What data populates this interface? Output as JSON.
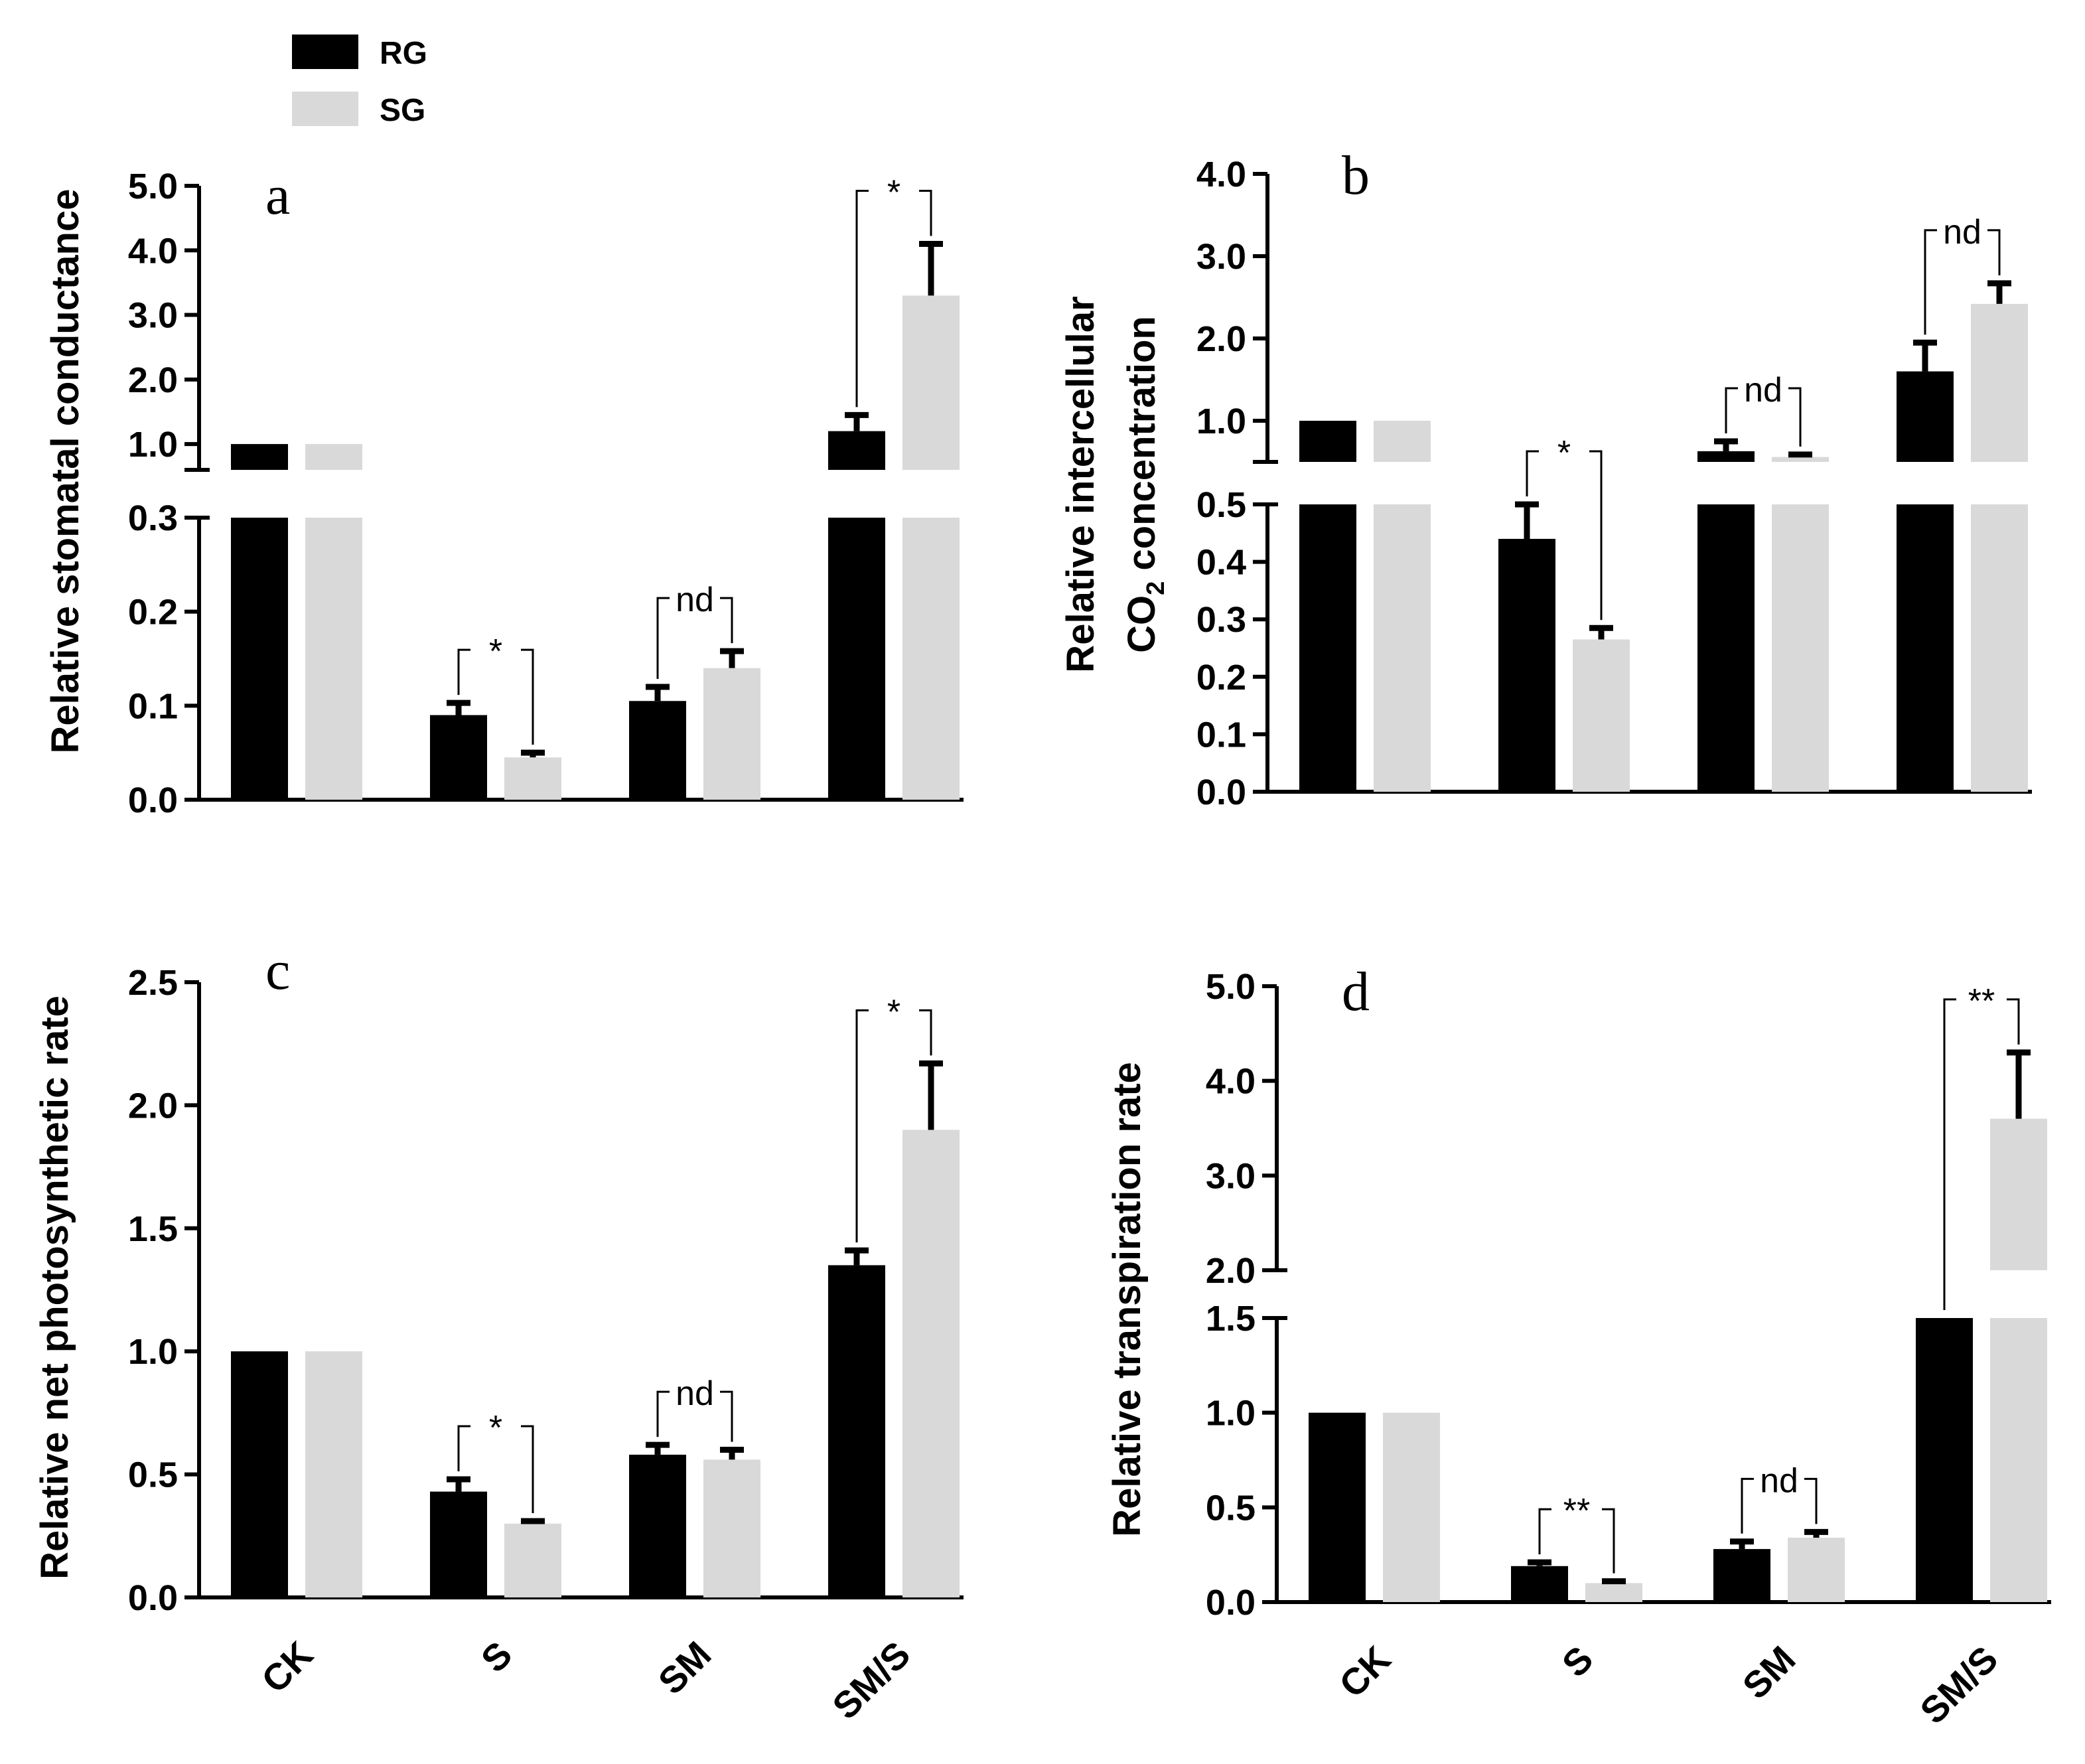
{
  "legend": {
    "items": [
      {
        "name": "RG",
        "color": "#000000"
      },
      {
        "name": "SG",
        "color": "#d9d9d9"
      }
    ]
  },
  "chart_data": [
    {
      "type": "bar",
      "panel": "a",
      "ylabel": "Relative stomatal conductance",
      "categories": [
        "CK",
        "S",
        "SM",
        "SM/S"
      ],
      "series": [
        {
          "name": "RG",
          "values": [
            1.0,
            0.09,
            0.105,
            1.2
          ],
          "errors": [
            0,
            0.013,
            0.015,
            0.25
          ]
        },
        {
          "name": "SG",
          "values": [
            1.0,
            0.045,
            0.14,
            3.3
          ],
          "errors": [
            0,
            0.005,
            0.018,
            0.8
          ]
        }
      ],
      "y_axis_broken": true,
      "ylim_lower": [
        0,
        0.3
      ],
      "ylim_upper": [
        0.6,
        5.0
      ],
      "yticks_lower": [
        "0.0",
        "0.1",
        "0.2",
        "0.3"
      ],
      "yticks_upper": [
        "1.0",
        "2.0",
        "3.0",
        "4.0",
        "5.0"
      ],
      "significance": [
        "",
        "*",
        "nd",
        "*"
      ],
      "show_category_labels": false
    },
    {
      "type": "bar",
      "panel": "b",
      "ylabel_line1": "Relative  intercellular",
      "ylabel_line2": "CO",
      "ylabel_sub": "2",
      "ylabel_line2_rest": " concentration",
      "categories": [
        "CK",
        "S",
        "SM",
        "SM/S"
      ],
      "series": [
        {
          "name": "RG",
          "values": [
            1.0,
            0.44,
            0.63,
            1.6
          ],
          "errors": [
            0,
            0.06,
            0.12,
            0.35
          ]
        },
        {
          "name": "SG",
          "values": [
            1.0,
            0.265,
            0.56,
            2.42
          ],
          "errors": [
            0,
            0.02,
            0.03,
            0.25
          ]
        }
      ],
      "y_axis_broken": true,
      "ylim_lower": [
        0,
        0.5
      ],
      "ylim_upper": [
        0.5,
        4.0
      ],
      "yticks_lower": [
        "0.0",
        "0.1",
        "0.2",
        "0.3",
        "0.4",
        "0.5"
      ],
      "yticks_upper": [
        "1.0",
        "2.0",
        "3.0",
        "4.0"
      ],
      "significance": [
        "",
        "*",
        "nd",
        "nd"
      ],
      "show_category_labels": false
    },
    {
      "type": "bar",
      "panel": "c",
      "ylabel": "Relative net photosynthetic rate",
      "categories": [
        "CK",
        "S",
        "SM",
        "SM/S"
      ],
      "series": [
        {
          "name": "RG",
          "values": [
            1.0,
            0.43,
            0.58,
            1.35
          ],
          "errors": [
            0,
            0.05,
            0.04,
            0.06
          ]
        },
        {
          "name": "SG",
          "values": [
            1.0,
            0.3,
            0.56,
            1.9
          ],
          "errors": [
            0,
            0.01,
            0.04,
            0.27
          ]
        }
      ],
      "y_axis_broken": false,
      "ylim": [
        0,
        2.5
      ],
      "yticks": [
        "0.0",
        "0.5",
        "1.0",
        "1.5",
        "2.0",
        "2.5"
      ],
      "significance": [
        "",
        "*",
        "nd",
        "*"
      ],
      "show_category_labels": true
    },
    {
      "type": "bar",
      "panel": "d",
      "ylabel": "Relative transpiration rate",
      "categories": [
        "CK",
        "S",
        "SM",
        "SM/S"
      ],
      "series": [
        {
          "name": "RG",
          "values": [
            1.0,
            0.19,
            0.28,
            1.5
          ],
          "errors": [
            0,
            0.02,
            0.04,
            0
          ]
        },
        {
          "name": "SG",
          "values": [
            1.0,
            0.1,
            0.34,
            3.6
          ],
          "errors": [
            0,
            0.01,
            0.03,
            0.7
          ]
        }
      ],
      "y_axis_broken": true,
      "ylim_lower": [
        0,
        1.5
      ],
      "ylim_upper": [
        2.0,
        5.0
      ],
      "yticks_lower": [
        "0.0",
        "0.5",
        "1.0",
        "1.5"
      ],
      "yticks_upper": [
        "2.0",
        "3.0",
        "4.0",
        "5.0"
      ],
      "significance": [
        "",
        "**",
        "nd",
        "**"
      ],
      "show_category_labels": true
    }
  ]
}
